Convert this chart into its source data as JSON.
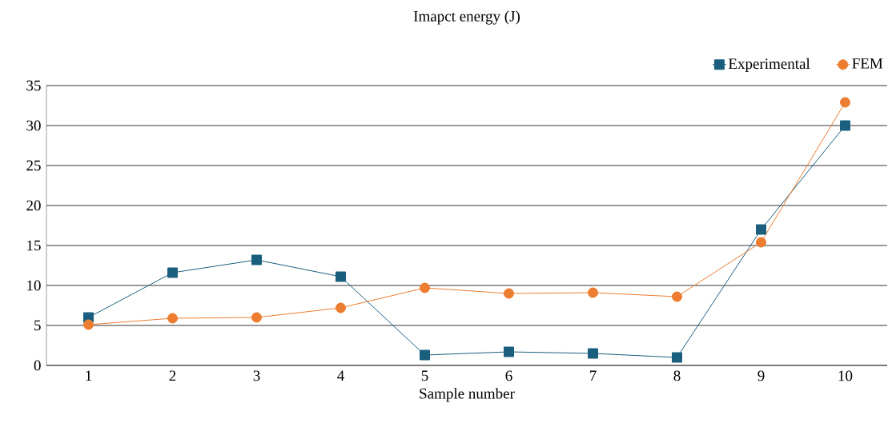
{
  "chart_data": {
    "type": "line",
    "title": "Imapct energy (J)",
    "xlabel": "Sample number",
    "categories": [
      "1",
      "2",
      "3",
      "4",
      "5",
      "6",
      "7",
      "8",
      "9",
      "10"
    ],
    "series": [
      {
        "name": "Experimental",
        "color": "#1b5f7f",
        "marker": "square",
        "values": [
          6.0,
          11.6,
          13.2,
          11.1,
          1.3,
          1.7,
          1.5,
          1.0,
          17.0,
          30.0
        ]
      },
      {
        "name": "FEM",
        "color": "#ed7d31",
        "marker": "circle",
        "values": [
          5.1,
          5.9,
          6.0,
          7.2,
          9.7,
          9.0,
          9.1,
          8.6,
          15.4,
          32.9
        ]
      }
    ],
    "ylim": [
      0,
      35
    ],
    "yticks": [
      0,
      5,
      10,
      15,
      20,
      25,
      30,
      35
    ],
    "grid": "y",
    "legend": "top right",
    "line_style": "solid"
  }
}
